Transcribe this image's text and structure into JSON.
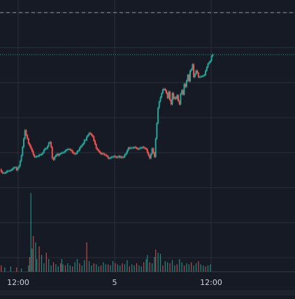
{
  "colors": {
    "background": "#161a25",
    "grid": "#2a2e39",
    "up": "#26a69a",
    "down": "#ef5350",
    "axis_text": "#d1d4dc",
    "scale_strip": "#1e222d",
    "dashed_line": "#b2b5be",
    "last_price_line": "#26a69a"
  },
  "chart_data": {
    "type": "candlestick",
    "title": "",
    "xlabel": "",
    "ylabel": "",
    "grid": true,
    "x_ticks": [
      "12:00",
      "5",
      "12:00"
    ],
    "y_ticks": [],
    "reference_lines": [
      "dashed",
      "last-price-dotted"
    ],
    "price_series": [
      [
        0,
        242
      ],
      [
        1,
        245
      ],
      [
        2,
        247
      ],
      [
        3,
        247
      ],
      [
        4,
        247
      ],
      [
        5,
        246
      ],
      [
        6,
        244
      ],
      [
        7,
        244
      ],
      [
        8,
        244
      ],
      [
        9,
        243
      ],
      [
        10,
        242
      ],
      [
        11,
        240
      ],
      [
        12,
        239
      ],
      [
        13,
        239
      ],
      [
        14,
        243
      ],
      [
        15,
        240
      ],
      [
        16,
        237
      ],
      [
        17,
        230
      ],
      [
        18,
        222
      ],
      [
        19,
        210
      ],
      [
        20,
        198
      ],
      [
        21,
        186
      ],
      [
        22,
        193
      ],
      [
        23,
        198
      ],
      [
        24,
        205
      ],
      [
        25,
        208
      ],
      [
        26,
        212
      ],
      [
        27,
        216
      ],
      [
        28,
        221
      ],
      [
        29,
        224
      ],
      [
        30,
        224
      ],
      [
        31,
        223
      ],
      [
        32,
        223
      ],
      [
        33,
        221
      ],
      [
        34,
        221
      ],
      [
        35,
        220
      ],
      [
        36,
        218
      ],
      [
        37,
        214
      ],
      [
        38,
        212
      ],
      [
        39,
        212
      ],
      [
        40,
        209
      ],
      [
        41,
        204
      ],
      [
        42,
        203
      ],
      [
        43,
        210
      ],
      [
        44,
        226
      ],
      [
        45,
        228
      ],
      [
        46,
        224
      ],
      [
        47,
        222
      ],
      [
        48,
        220
      ],
      [
        49,
        222
      ],
      [
        50,
        220
      ],
      [
        51,
        219
      ],
      [
        52,
        218
      ],
      [
        53,
        218
      ],
      [
        54,
        217
      ],
      [
        55,
        215
      ],
      [
        56,
        214
      ],
      [
        57,
        213
      ],
      [
        58,
        213
      ],
      [
        59,
        214
      ],
      [
        60,
        215
      ],
      [
        61,
        218
      ],
      [
        62,
        219
      ],
      [
        63,
        220
      ],
      [
        64,
        219
      ],
      [
        65,
        216
      ],
      [
        66,
        215
      ],
      [
        67,
        211
      ],
      [
        68,
        209
      ],
      [
        69,
        207
      ],
      [
        70,
        205
      ],
      [
        71,
        200
      ],
      [
        72,
        200
      ],
      [
        73,
        195
      ],
      [
        74,
        193
      ],
      [
        75,
        190
      ],
      [
        76,
        191
      ],
      [
        77,
        193
      ],
      [
        78,
        195
      ],
      [
        79,
        201
      ],
      [
        80,
        206
      ],
      [
        81,
        212
      ],
      [
        82,
        214
      ],
      [
        83,
        216
      ],
      [
        84,
        218
      ],
      [
        85,
        220
      ],
      [
        86,
        219
      ],
      [
        87,
        220
      ],
      [
        88,
        221
      ],
      [
        89,
        222
      ],
      [
        90,
        223
      ],
      [
        91,
        226
      ],
      [
        92,
        226
      ],
      [
        93,
        225
      ],
      [
        94,
        224
      ],
      [
        95,
        224
      ],
      [
        96,
        223
      ],
      [
        97,
        224
      ],
      [
        98,
        225
      ],
      [
        99,
        224
      ],
      [
        100,
        223
      ],
      [
        101,
        225
      ],
      [
        102,
        224
      ],
      [
        103,
        225
      ],
      [
        104,
        224
      ],
      [
        105,
        221
      ],
      [
        106,
        219
      ],
      [
        107,
        215
      ],
      [
        108,
        211
      ],
      [
        109,
        212
      ],
      [
        110,
        211
      ],
      [
        111,
        211
      ],
      [
        112,
        211
      ],
      [
        113,
        210
      ],
      [
        114,
        211
      ],
      [
        115,
        212
      ],
      [
        116,
        213
      ],
      [
        117,
        212
      ],
      [
        118,
        211
      ],
      [
        119,
        211
      ],
      [
        120,
        210
      ],
      [
        121,
        211
      ],
      [
        122,
        212
      ],
      [
        123,
        213
      ],
      [
        124,
        218
      ],
      [
        125,
        222
      ],
      [
        126,
        226
      ],
      [
        127,
        220
      ],
      [
        128,
        212
      ],
      [
        129,
        218
      ],
      [
        130,
        224
      ],
      [
        131,
        198
      ],
      [
        132,
        176
      ],
      [
        133,
        154
      ],
      [
        134,
        145
      ],
      [
        135,
        139
      ],
      [
        136,
        133
      ],
      [
        137,
        128
      ],
      [
        138,
        127
      ],
      [
        139,
        129
      ],
      [
        140,
        133
      ],
      [
        141,
        140
      ],
      [
        142,
        131
      ],
      [
        143,
        143
      ],
      [
        144,
        149
      ],
      [
        145,
        133
      ],
      [
        146,
        141
      ],
      [
        147,
        139
      ],
      [
        148,
        141
      ],
      [
        149,
        136
      ],
      [
        150,
        144
      ],
      [
        151,
        149
      ],
      [
        152,
        134
      ],
      [
        153,
        129
      ],
      [
        154,
        135
      ],
      [
        155,
        120
      ],
      [
        156,
        124
      ],
      [
        157,
        115
      ],
      [
        158,
        107
      ],
      [
        159,
        116
      ],
      [
        160,
        101
      ],
      [
        161,
        99
      ],
      [
        162,
        92
      ],
      [
        163,
        110
      ],
      [
        164,
        106
      ],
      [
        165,
        101
      ],
      [
        166,
        104
      ],
      [
        167,
        110
      ],
      [
        168,
        110
      ],
      [
        169,
        109
      ],
      [
        170,
        109
      ],
      [
        171,
        108
      ],
      [
        172,
        107
      ],
      [
        173,
        101
      ],
      [
        174,
        96
      ],
      [
        175,
        91
      ],
      [
        176,
        89
      ],
      [
        177,
        87
      ],
      [
        178,
        80
      ],
      [
        179,
        78
      ]
    ],
    "volume_series": [
      [
        1,
        6
      ],
      [
        4,
        4
      ],
      [
        9,
        5
      ],
      [
        14,
        4
      ],
      [
        18,
        3
      ],
      [
        24,
        6
      ],
      [
        25,
        14
      ],
      [
        26,
        75
      ],
      [
        27,
        22
      ],
      [
        28,
        34
      ],
      [
        30,
        28
      ],
      [
        31,
        12
      ],
      [
        33,
        24
      ],
      [
        35,
        16
      ],
      [
        37,
        8
      ],
      [
        39,
        18
      ],
      [
        41,
        12
      ],
      [
        43,
        6
      ],
      [
        45,
        9
      ],
      [
        47,
        7
      ],
      [
        49,
        5
      ],
      [
        51,
        8
      ],
      [
        52,
        12
      ],
      [
        53,
        7
      ],
      [
        55,
        6
      ],
      [
        57,
        8
      ],
      [
        59,
        6
      ],
      [
        61,
        5
      ],
      [
        63,
        9
      ],
      [
        65,
        12
      ],
      [
        67,
        8
      ],
      [
        69,
        6
      ],
      [
        71,
        11
      ],
      [
        73,
        28
      ],
      [
        75,
        10
      ],
      [
        77,
        6
      ],
      [
        79,
        8
      ],
      [
        81,
        7
      ],
      [
        83,
        5
      ],
      [
        85,
        6
      ],
      [
        87,
        9
      ],
      [
        89,
        7
      ],
      [
        91,
        7
      ],
      [
        93,
        6
      ],
      [
        95,
        10
      ],
      [
        97,
        8
      ],
      [
        99,
        7
      ],
      [
        101,
        6
      ],
      [
        103,
        8
      ],
      [
        105,
        7
      ],
      [
        107,
        11
      ],
      [
        109,
        5
      ],
      [
        111,
        7
      ],
      [
        113,
        6
      ],
      [
        115,
        8
      ],
      [
        117,
        6
      ],
      [
        119,
        5
      ],
      [
        121,
        9
      ],
      [
        123,
        12
      ],
      [
        124,
        16
      ],
      [
        126,
        9
      ],
      [
        128,
        8
      ],
      [
        130,
        14
      ],
      [
        131,
        21
      ],
      [
        133,
        18
      ],
      [
        135,
        17
      ],
      [
        137,
        6
      ],
      [
        139,
        10
      ],
      [
        141,
        9
      ],
      [
        143,
        8
      ],
      [
        145,
        11
      ],
      [
        147,
        6
      ],
      [
        149,
        7
      ],
      [
        151,
        12
      ],
      [
        153,
        9
      ],
      [
        155,
        6
      ],
      [
        157,
        8
      ],
      [
        159,
        7
      ],
      [
        161,
        9
      ],
      [
        163,
        6
      ],
      [
        165,
        8
      ],
      [
        167,
        10
      ],
      [
        169,
        7
      ],
      [
        171,
        6
      ],
      [
        173,
        5
      ],
      [
        175,
        6
      ],
      [
        177,
        7
      ]
    ]
  }
}
